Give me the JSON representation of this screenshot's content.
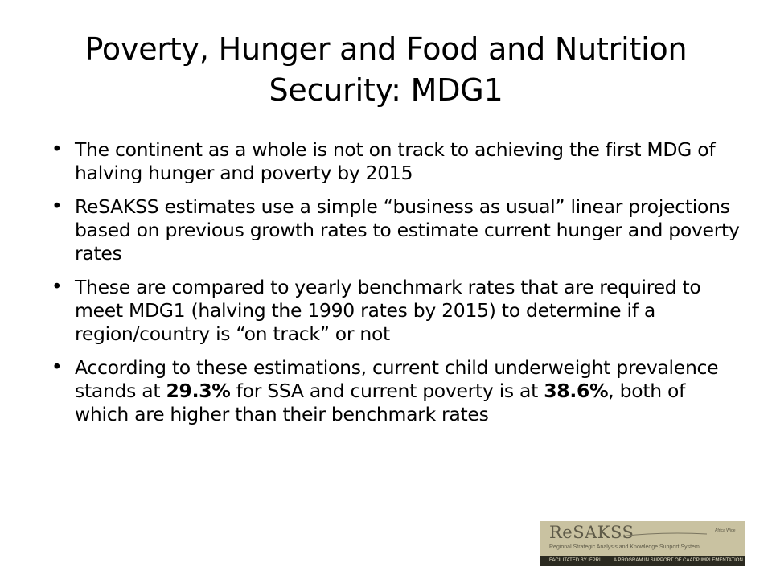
{
  "slide": {
    "title": "Poverty, Hunger and Food and Nutrition Security: MDG1",
    "bullet_marker": "•",
    "bullets": [
      {
        "text": "The continent as a whole is not on track to achieving the first MDG of halving hunger and poverty by 2015"
      },
      {
        "text": "ReSAKSS estimates use a simple “business as usual” linear projections based on previous growth rates to estimate current hunger and poverty rates"
      },
      {
        "text": "These are compared to yearly benchmark rates that are required to meet MDG1 (halving the 1990 rates by 2015) to determine if a region/country is “on track” or not"
      },
      {
        "part1": "According to these estimations, current child underweight prevalence stands at ",
        "highlight1": "29.3%",
        "part2": " for SSA and current poverty is at ",
        "highlight2": "38.6%",
        "part3": ", both of which are higher than their benchmark rates"
      }
    ]
  },
  "logo": {
    "name": "ReSAKSS",
    "scope": "Africa Wide",
    "tagline": "Regional Strategic Analysis and Knowledge Support System",
    "facilitated_by": "FACILITATED BY IFPRI",
    "program": "A PROGRAM IN SUPPORT OF CAADP IMPLEMENTATION"
  }
}
